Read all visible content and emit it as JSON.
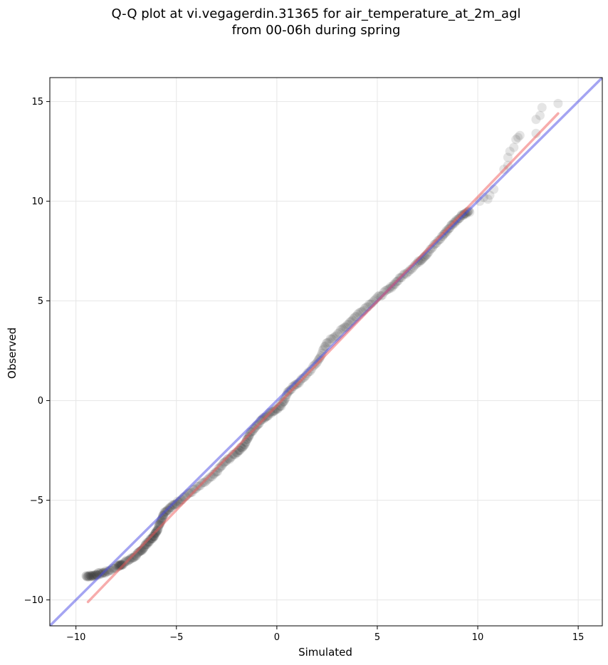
{
  "chart_data": {
    "type": "scatter",
    "title_lines": [
      "Q-Q plot at vi.vegagerdin.31365 for air_temperature_at_2m_agl",
      "from 00-06h during spring"
    ],
    "xlabel": "Simulated",
    "ylabel": "Observed",
    "xlim": [
      -11.3,
      16.2
    ],
    "ylim": [
      -11.3,
      16.2
    ],
    "xticks": [
      -10,
      -5,
      0,
      5,
      10,
      15
    ],
    "yticks": [
      -10,
      -5,
      0,
      5,
      10,
      15
    ],
    "xtick_labels": [
      "−10",
      "−5",
      "0",
      "5",
      "10",
      "15"
    ],
    "ytick_labels": [
      "−10",
      "−5",
      "0",
      "5",
      "10",
      "15"
    ],
    "grid": true,
    "colors": {
      "points": "#333333",
      "identity_line": "#4a4ae6",
      "fit_line": "#f05a5a",
      "grid": "#e6e6e6",
      "frame": "#000000"
    },
    "reference_lines": [
      {
        "kind": "identity",
        "x": [
          -11.3,
          16.2
        ],
        "y": [
          -11.3,
          16.2
        ]
      },
      {
        "kind": "fit",
        "x": [
          -9.4,
          14.0
        ],
        "y": [
          -10.1,
          14.4
        ]
      }
    ],
    "knots": [
      [
        -9.5,
        -8.8
      ],
      [
        -9.2,
        -8.8
      ],
      [
        -8.9,
        -8.7
      ],
      [
        -8.5,
        -8.6
      ],
      [
        -7.9,
        -8.3
      ],
      [
        -7.7,
        -8.2
      ],
      [
        -7.2,
        -7.9
      ],
      [
        -6.8,
        -7.6
      ],
      [
        -6.5,
        -7.2
      ],
      [
        -6.2,
        -6.9
      ],
      [
        -6.0,
        -6.6
      ],
      [
        -5.8,
        -6.1
      ],
      [
        -5.6,
        -5.6
      ],
      [
        -5.2,
        -5.3
      ],
      [
        -4.7,
        -4.9
      ],
      [
        -4.0,
        -4.4
      ],
      [
        -3.2,
        -3.8
      ],
      [
        -2.6,
        -3.1
      ],
      [
        -2.0,
        -2.6
      ],
      [
        -1.6,
        -2.2
      ],
      [
        -1.3,
        -1.6
      ],
      [
        -0.8,
        -1.0
      ],
      [
        -0.3,
        -0.6
      ],
      [
        0.2,
        -0.3
      ],
      [
        0.6,
        0.5
      ],
      [
        1.2,
        1.0
      ],
      [
        2.0,
        1.9
      ],
      [
        2.5,
        2.9
      ],
      [
        3.3,
        3.6
      ],
      [
        4.0,
        4.3
      ],
      [
        4.8,
        5.0
      ],
      [
        5.6,
        5.6
      ],
      [
        6.2,
        6.2
      ],
      [
        7.0,
        6.9
      ],
      [
        7.5,
        7.4
      ],
      [
        8.2,
        8.2
      ],
      [
        8.7,
        8.8
      ],
      [
        9.2,
        9.3
      ],
      [
        9.6,
        9.5
      ]
    ],
    "n_points": 420,
    "tail_high": [
      [
        10.1,
        10.0
      ],
      [
        10.3,
        10.2
      ],
      [
        10.6,
        10.3
      ],
      [
        10.8,
        10.6
      ],
      [
        10.5,
        10.1
      ],
      [
        11.3,
        11.6
      ],
      [
        11.5,
        11.8
      ],
      [
        11.5,
        12.2
      ],
      [
        11.6,
        12.5
      ],
      [
        11.8,
        12.7
      ],
      [
        11.9,
        13.1
      ],
      [
        12.1,
        13.3
      ],
      [
        12.0,
        13.2
      ],
      [
        12.9,
        13.4
      ],
      [
        12.9,
        14.1
      ],
      [
        13.1,
        14.3
      ],
      [
        13.2,
        14.7
      ],
      [
        14.0,
        14.9
      ]
    ]
  }
}
